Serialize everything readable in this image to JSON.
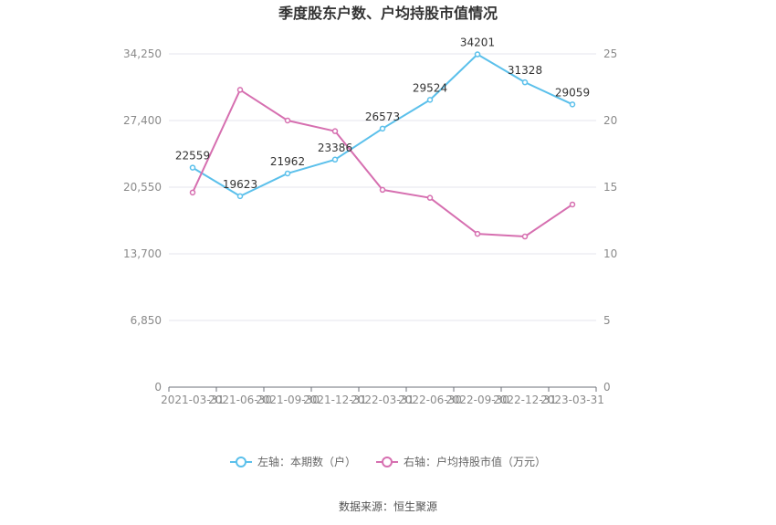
{
  "chart_data": {
    "type": "line",
    "title": "季度股东户数、户均持股市值情况",
    "categories": [
      "2021-03-31",
      "2021-06-30",
      "2021-09-30",
      "2021-12-31",
      "2022-03-31",
      "2022-06-30",
      "2022-09-30",
      "2022-12-31",
      "2023-03-31"
    ],
    "series": [
      {
        "name": "左轴：本期数（户）",
        "axis": "left",
        "color": "#5bc0eb",
        "values": [
          22559,
          19623,
          21962,
          23386,
          26573,
          29524,
          34201,
          31328,
          29059
        ],
        "data_labels": [
          "22559",
          "19623",
          "21962",
          "23386",
          "26573",
          "29524",
          "34201",
          "31328",
          "29059"
        ]
      },
      {
        "name": "右轴：户均持股市值（万元）",
        "axis": "right",
        "color": "#d66fb0",
        "values": [
          14.6,
          22.3,
          20.0,
          19.2,
          14.8,
          14.2,
          11.5,
          11.3,
          13.7
        ]
      }
    ],
    "left_axis": {
      "ylim": [
        0,
        34250
      ],
      "ticks": [
        0,
        6850,
        13700,
        20550,
        27400,
        34250
      ],
      "tick_labels": [
        "0",
        "6,850",
        "13,700",
        "20,550",
        "27,400",
        "34,250"
      ]
    },
    "right_axis": {
      "ylim": [
        0,
        25
      ],
      "ticks": [
        0,
        5,
        10,
        15,
        20,
        25
      ],
      "tick_labels": [
        "0",
        "5",
        "10",
        "15",
        "20",
        "25"
      ]
    },
    "grid": true,
    "legend_position": "bottom"
  },
  "source": "数据来源：恒生聚源"
}
